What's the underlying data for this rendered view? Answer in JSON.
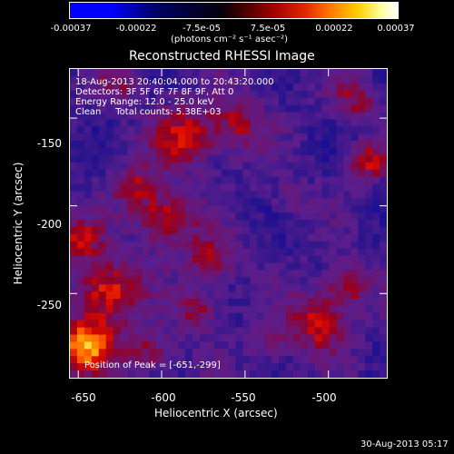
{
  "colorbar": {
    "ticks": [
      "-0.00037",
      "-0.00022",
      "-7.5e-05",
      "7.5e-05",
      "0.00022",
      "0.00037"
    ],
    "unit_label": "(photons cm⁻² s⁻¹ asec⁻²)",
    "colors": [
      "#0000ff",
      "#00006a",
      "#05000a",
      "#a00000",
      "#ff8000",
      "#ffffff"
    ]
  },
  "chart_data": {
    "type": "heatmap",
    "title": "Reconstructed RHESSI Image",
    "xlabel": "Heliocentric X (arcsec)",
    "ylabel": "Heliocentric Y (arcsec)",
    "xlim": [
      -655,
      -465
    ],
    "ylim": [
      -298,
      -122
    ],
    "xticks": [
      -650,
      -600,
      -550,
      -500
    ],
    "yticks": [
      -150,
      -200,
      -250
    ],
    "annotations": [
      "18-Aug-2013 20:40:04.000 to 20:43:20.000",
      "Detectors: 3F 5F 6F 7F 8F 9F, Att 0",
      "Energy Range: 12.0 - 25.0 keV",
      "Clean     Total counts: 5.38E+03"
    ],
    "peak_label": "Position of Peak = [-651,-299]",
    "value_range": [
      -0.00037,
      0.00037
    ],
    "colormap": "rhessi-blue-black-red-yellow-white"
  },
  "footer": {
    "date": "30-Aug-2013 05:17"
  }
}
